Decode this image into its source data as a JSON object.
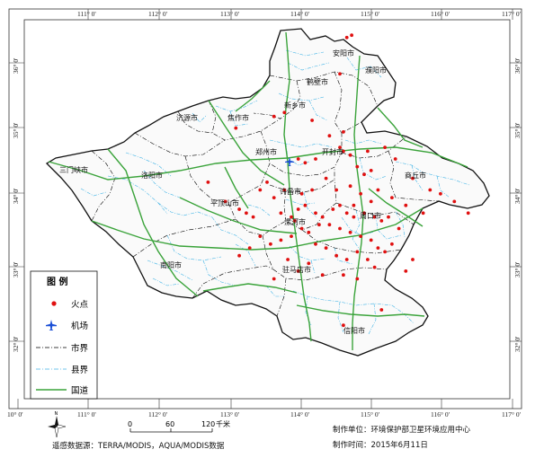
{
  "lon_labels": [
    "111° 0'",
    "112° 0'",
    "113° 0'",
    "114° 0'",
    "115° 0'",
    "116° 0'",
    "117° 0'"
  ],
  "lon_labels_bottom": [
    "10° 0'",
    "111° 0'",
    "112° 0'",
    "113° 0'",
    "114° 0'",
    "115° 0'",
    "116° 0'",
    "117° 0'"
  ],
  "lat_labels": [
    "36° 0'",
    "35° 0'",
    "34° 0'",
    "33° 0'",
    "32° 0'"
  ],
  "cities": [
    {
      "name": "安阳市"
    },
    {
      "name": "濮阳市"
    },
    {
      "name": "鹤壁市"
    },
    {
      "name": "新乡市"
    },
    {
      "name": "济源市"
    },
    {
      "name": "焦作市"
    },
    {
      "name": "郑州市"
    },
    {
      "name": "开封市"
    },
    {
      "name": "三门峡市"
    },
    {
      "name": "洛阳市"
    },
    {
      "name": "商丘市"
    },
    {
      "name": "许昌市"
    },
    {
      "name": "平顶山市"
    },
    {
      "name": "漯河市"
    },
    {
      "name": "周口市"
    },
    {
      "name": "南阳市"
    },
    {
      "name": "驻马店市"
    },
    {
      "name": "信阳市"
    }
  ],
  "legend": {
    "title": "图  例",
    "items": [
      {
        "label": "火点",
        "symbol": "dot",
        "color": "#e01010"
      },
      {
        "label": "机场",
        "symbol": "airplane",
        "color": "#1a4fd6"
      },
      {
        "label": "市界",
        "symbol": "dashdot-line",
        "color": "#000000"
      },
      {
        "label": "县界",
        "symbol": "dashdot-line",
        "color": "#41b4e6"
      },
      {
        "label": "国道",
        "symbol": "solid-line",
        "color": "#3aa33a"
      }
    ]
  },
  "scale_bar": {
    "ticks": [
      "0",
      "60",
      "120"
    ],
    "unit": "千米"
  },
  "north_arrow": {
    "label": "N"
  },
  "footer": {
    "source": "遥感数据源：TERRA/MODIS，AQUA/MODIS数据",
    "producer": "制作单位：环境保护部卫星环境应用中心",
    "date": "制作时间：2015年6月11日"
  },
  "colors": {
    "fire": "#e01010",
    "road": "#3aa33a",
    "county": "#41b4e6",
    "city_border": "#000000",
    "frame": "#333333"
  },
  "fire_points": [
    {
      "lon": 114.55,
      "lat": 35.8
    },
    {
      "lon": 114.72,
      "lat": 36.3
    },
    {
      "lon": 114.65,
      "lat": 36.27
    },
    {
      "lon": 113.6,
      "lat": 35.25
    },
    {
      "lon": 113.75,
      "lat": 35.3
    },
    {
      "lon": 113.05,
      "lat": 35.1
    },
    {
      "lon": 114.15,
      "lat": 35.2
    },
    {
      "lon": 114.6,
      "lat": 35.05
    },
    {
      "lon": 114.4,
      "lat": 35.0
    },
    {
      "lon": 114.55,
      "lat": 34.85
    },
    {
      "lon": 114.6,
      "lat": 34.8
    },
    {
      "lon": 114.7,
      "lat": 34.75
    },
    {
      "lon": 114.95,
      "lat": 34.8
    },
    {
      "lon": 115.2,
      "lat": 34.85
    },
    {
      "lon": 114.8,
      "lat": 34.6
    },
    {
      "lon": 114.9,
      "lat": 34.5
    },
    {
      "lon": 115.1,
      "lat": 34.3
    },
    {
      "lon": 115.3,
      "lat": 34.2
    },
    {
      "lon": 115.6,
      "lat": 34.45
    },
    {
      "lon": 115.85,
      "lat": 34.3
    },
    {
      "lon": 116.0,
      "lat": 34.25
    },
    {
      "lon": 116.2,
      "lat": 34.15
    },
    {
      "lon": 116.4,
      "lat": 34.0
    },
    {
      "lon": 115.5,
      "lat": 34.1
    },
    {
      "lon": 115.75,
      "lat": 34.0
    },
    {
      "lon": 114.2,
      "lat": 34.7
    },
    {
      "lon": 114.05,
      "lat": 34.65
    },
    {
      "lon": 113.95,
      "lat": 34.7
    },
    {
      "lon": 113.5,
      "lat": 34.4
    },
    {
      "lon": 113.4,
      "lat": 34.3
    },
    {
      "lon": 113.6,
      "lat": 34.2
    },
    {
      "lon": 112.65,
      "lat": 34.4
    },
    {
      "lon": 112.9,
      "lat": 34.15
    },
    {
      "lon": 113.1,
      "lat": 34.05
    },
    {
      "lon": 113.2,
      "lat": 34.0
    },
    {
      "lon": 113.3,
      "lat": 33.95
    },
    {
      "lon": 113.7,
      "lat": 34.0
    },
    {
      "lon": 113.85,
      "lat": 33.95
    },
    {
      "lon": 113.95,
      "lat": 34.05
    },
    {
      "lon": 114.05,
      "lat": 34.1
    },
    {
      "lon": 114.2,
      "lat": 34.0
    },
    {
      "lon": 114.3,
      "lat": 33.95
    },
    {
      "lon": 114.45,
      "lat": 34.05
    },
    {
      "lon": 114.55,
      "lat": 34.1
    },
    {
      "lon": 114.65,
      "lat": 34.0
    },
    {
      "lon": 114.75,
      "lat": 34.1
    },
    {
      "lon": 114.9,
      "lat": 34.0
    },
    {
      "lon": 115.05,
      "lat": 33.95
    },
    {
      "lon": 115.15,
      "lat": 33.9
    },
    {
      "lon": 115.25,
      "lat": 33.95
    },
    {
      "lon": 114.4,
      "lat": 33.85
    },
    {
      "lon": 114.55,
      "lat": 33.8
    },
    {
      "lon": 114.7,
      "lat": 33.75
    },
    {
      "lon": 114.85,
      "lat": 33.7
    },
    {
      "lon": 115.0,
      "lat": 33.65
    },
    {
      "lon": 115.1,
      "lat": 33.55
    },
    {
      "lon": 115.2,
      "lat": 33.5
    },
    {
      "lon": 115.3,
      "lat": 33.6
    },
    {
      "lon": 114.0,
      "lat": 33.8
    },
    {
      "lon": 113.85,
      "lat": 33.7
    },
    {
      "lon": 113.7,
      "lat": 33.65
    },
    {
      "lon": 113.55,
      "lat": 33.6
    },
    {
      "lon": 113.4,
      "lat": 33.7
    },
    {
      "lon": 113.25,
      "lat": 33.55
    },
    {
      "lon": 113.1,
      "lat": 33.45
    },
    {
      "lon": 114.2,
      "lat": 33.6
    },
    {
      "lon": 114.35,
      "lat": 33.55
    },
    {
      "lon": 114.5,
      "lat": 33.45
    },
    {
      "lon": 114.65,
      "lat": 33.4
    },
    {
      "lon": 114.8,
      "lat": 33.5
    },
    {
      "lon": 114.95,
      "lat": 33.4
    },
    {
      "lon": 115.05,
      "lat": 33.3
    },
    {
      "lon": 114.1,
      "lat": 33.35
    },
    {
      "lon": 113.95,
      "lat": 33.25
    },
    {
      "lon": 113.8,
      "lat": 33.4
    },
    {
      "lon": 114.3,
      "lat": 33.2
    },
    {
      "lon": 114.6,
      "lat": 33.2
    },
    {
      "lon": 114.8,
      "lat": 33.15
    },
    {
      "lon": 113.6,
      "lat": 33.15
    },
    {
      "lon": 115.15,
      "lat": 32.75
    },
    {
      "lon": 114.6,
      "lat": 32.55
    },
    {
      "lon": 115.5,
      "lat": 33.25
    },
    {
      "lon": 115.6,
      "lat": 33.4
    },
    {
      "lon": 115.4,
      "lat": 33.8
    },
    {
      "lon": 114.75,
      "lat": 33.95
    },
    {
      "lon": 113.9,
      "lat": 33.9
    },
    {
      "lon": 114.1,
      "lat": 33.75
    },
    {
      "lon": 114.25,
      "lat": 33.85
    },
    {
      "lon": 115.35,
      "lat": 34.7
    },
    {
      "lon": 115.0,
      "lat": 34.55
    },
    {
      "lon": 114.35,
      "lat": 34.45
    },
    {
      "lon": 114.5,
      "lat": 34.3
    },
    {
      "lon": 114.7,
      "lat": 34.35
    },
    {
      "lon": 114.85,
      "lat": 34.25
    },
    {
      "lon": 115.0,
      "lat": 34.15
    },
    {
      "lon": 114.15,
      "lat": 34.3
    },
    {
      "lon": 114.0,
      "lat": 34.25
    },
    {
      "lon": 113.75,
      "lat": 34.3
    }
  ]
}
